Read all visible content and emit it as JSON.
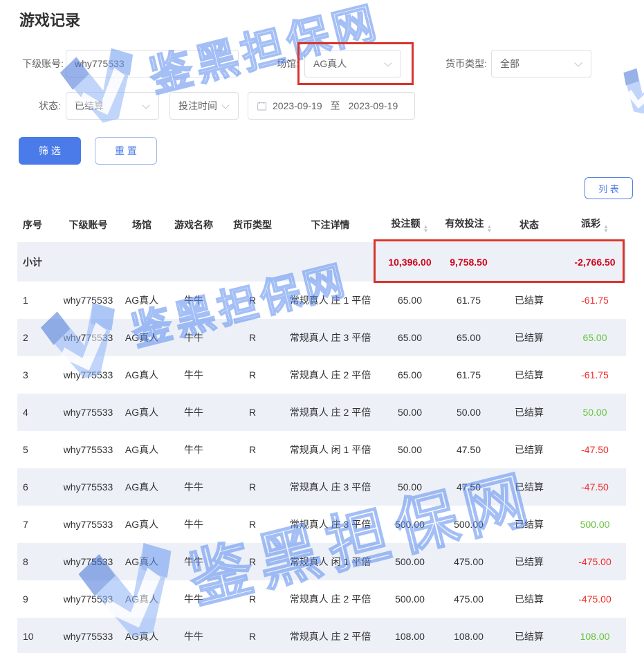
{
  "page": {
    "title": "游戏记录"
  },
  "filters": {
    "account_label": "下级账号:",
    "account_value": "why775533",
    "venue_label": "场馆:",
    "venue_value": "AG真人",
    "currency_label": "货币类型:",
    "currency_value": "全部",
    "status_label": "状态:",
    "status_value": "已结算",
    "time_type_value": "投注时间",
    "date_start": "2023-09-19",
    "date_separator": "至",
    "date_end": "2023-09-19",
    "filter_button": "筛 选",
    "reset_button": "重 置"
  },
  "toolbar": {
    "list_button": "列 表"
  },
  "table": {
    "columns": [
      {
        "label": "序号",
        "sortable": false
      },
      {
        "label": "下级账号",
        "sortable": false
      },
      {
        "label": "场馆",
        "sortable": false
      },
      {
        "label": "游戏名称",
        "sortable": false
      },
      {
        "label": "货币类型",
        "sortable": false
      },
      {
        "label": "下注详情",
        "sortable": false
      },
      {
        "label": "投注额",
        "sortable": true
      },
      {
        "label": "有效投注",
        "sortable": true
      },
      {
        "label": "状态",
        "sortable": false
      },
      {
        "label": "派彩",
        "sortable": true
      }
    ],
    "subtotal": {
      "label": "小计",
      "bet": "10,396.00",
      "valid": "9,758.50",
      "payout": "-2,766.50"
    },
    "rows": [
      {
        "no": "1",
        "account": "why775533",
        "venue": "AG真人",
        "game": "牛牛",
        "currency": "R",
        "detail": "常规真人 庄 1 平倍",
        "bet": "65.00",
        "valid": "61.75",
        "status": "已结算",
        "payout": "-61.75"
      },
      {
        "no": "2",
        "account": "why775533",
        "venue": "AG真人",
        "game": "牛牛",
        "currency": "R",
        "detail": "常规真人 庄 3 平倍",
        "bet": "65.00",
        "valid": "65.00",
        "status": "已结算",
        "payout": "65.00"
      },
      {
        "no": "3",
        "account": "why775533",
        "venue": "AG真人",
        "game": "牛牛",
        "currency": "R",
        "detail": "常规真人 庄 2 平倍",
        "bet": "65.00",
        "valid": "61.75",
        "status": "已结算",
        "payout": "-61.75"
      },
      {
        "no": "4",
        "account": "why775533",
        "venue": "AG真人",
        "game": "牛牛",
        "currency": "R",
        "detail": "常规真人 庄 2 平倍",
        "bet": "50.00",
        "valid": "50.00",
        "status": "已结算",
        "payout": "50.00"
      },
      {
        "no": "5",
        "account": "why775533",
        "venue": "AG真人",
        "game": "牛牛",
        "currency": "R",
        "detail": "常规真人 闲 1 平倍",
        "bet": "50.00",
        "valid": "47.50",
        "status": "已结算",
        "payout": "-47.50"
      },
      {
        "no": "6",
        "account": "why775533",
        "venue": "AG真人",
        "game": "牛牛",
        "currency": "R",
        "detail": "常规真人 庄 3 平倍",
        "bet": "50.00",
        "valid": "47.50",
        "status": "已结算",
        "payout": "-47.50"
      },
      {
        "no": "7",
        "account": "why775533",
        "venue": "AG真人",
        "game": "牛牛",
        "currency": "R",
        "detail": "常规真人 庄 3 平倍",
        "bet": "500.00",
        "valid": "500.00",
        "status": "已结算",
        "payout": "500.00"
      },
      {
        "no": "8",
        "account": "why775533",
        "venue": "AG真人",
        "game": "牛牛",
        "currency": "R",
        "detail": "常规真人 闲 1 平倍",
        "bet": "500.00",
        "valid": "475.00",
        "status": "已结算",
        "payout": "-475.00"
      },
      {
        "no": "9",
        "account": "why775533",
        "venue": "AG真人",
        "game": "牛牛",
        "currency": "R",
        "detail": "常规真人 庄 2 平倍",
        "bet": "500.00",
        "valid": "475.00",
        "status": "已结算",
        "payout": "-475.00"
      },
      {
        "no": "10",
        "account": "why775533",
        "venue": "AG真人",
        "game": "牛牛",
        "currency": "R",
        "detail": "常规真人 庄 2 平倍",
        "bet": "108.00",
        "valid": "108.00",
        "status": "已结算",
        "payout": "108.00"
      }
    ]
  },
  "watermark": {
    "text": "鉴黑担保网"
  },
  "colors": {
    "accent_blue": "#4a7be8",
    "highlight_red": "#d8342c",
    "subtotal_red": "#d0021b",
    "payout_negative": "#f22b2b",
    "payout_positive": "#67c23a",
    "watermark_blue": "#5b8cf0"
  }
}
